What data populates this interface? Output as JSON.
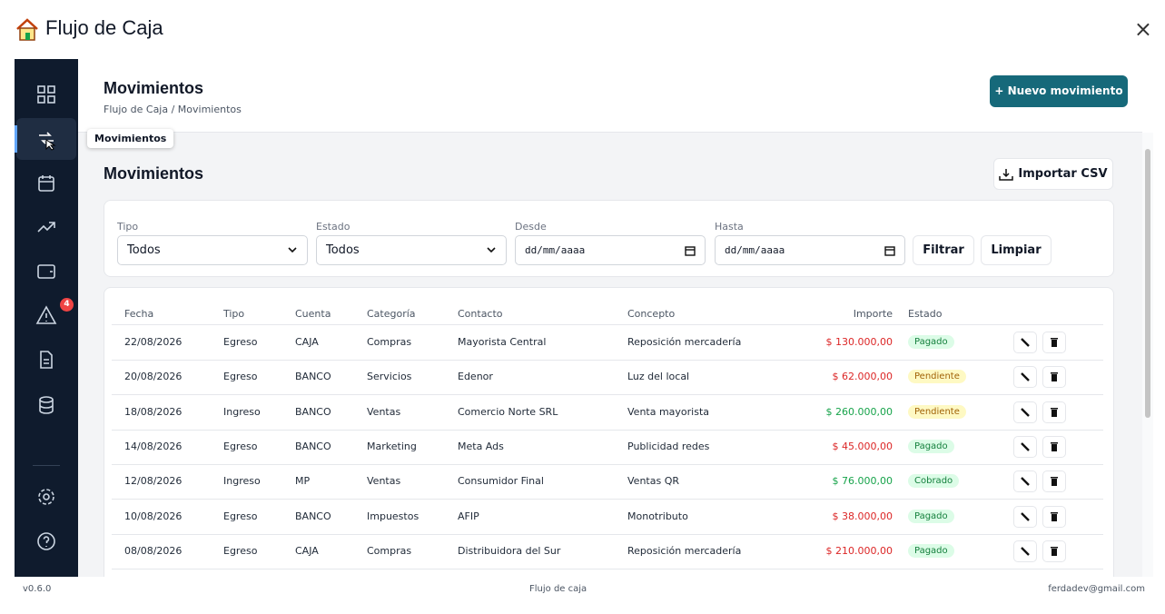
{
  "app": {
    "title": "Flujo de Caja",
    "close": "×"
  },
  "sidebar": {
    "tooltip": "Movimientos",
    "alert_badge": "4"
  },
  "header": {
    "title": "Movimientos",
    "breadcrumb": "Flujo de Caja / Movimientos",
    "new_button": "+ Nuevo movimiento"
  },
  "section": {
    "title": "Movimientos",
    "import_button": "Importar CSV"
  },
  "filters": {
    "fields": [
      {
        "label": "Tipo",
        "value": "Todos"
      },
      {
        "label": "Estado",
        "value": "Todos"
      },
      {
        "label": "Desde",
        "value": "dd/mm/aaaa"
      },
      {
        "label": "Hasta",
        "value": "dd/mm/aaaa"
      }
    ],
    "filter_button": "Filtrar",
    "clear_button": "Limpiar"
  },
  "table": {
    "columns": [
      "Fecha",
      "Tipo",
      "Cuenta",
      "Categoría",
      "Contacto",
      "Concepto",
      "Importe",
      "Estado"
    ],
    "rows": [
      {
        "cells": [
          "22/08/2026",
          "Egreso",
          "CAJA",
          "Compras",
          "Mayorista Central",
          "Reposición mercadería",
          "$ 130.000,00",
          "Pagado"
        ],
        "amount_color": "#dc2626",
        "status_color": "green"
      },
      {
        "cells": [
          "20/08/2026",
          "Egreso",
          "BANCO",
          "Servicios",
          "Edenor",
          "Luz del local",
          "$ 62.000,00",
          "Pendiente"
        ],
        "amount_color": "#dc2626",
        "status_color": "yellow"
      },
      {
        "cells": [
          "18/08/2026",
          "Ingreso",
          "BANCO",
          "Ventas",
          "Comercio Norte SRL",
          "Venta mayorista",
          "$ 260.000,00",
          "Pendiente"
        ],
        "amount_color": "#16a34a",
        "status_color": "yellow"
      },
      {
        "cells": [
          "14/08/2026",
          "Egreso",
          "BANCO",
          "Marketing",
          "Meta Ads",
          "Publicidad redes",
          "$ 45.000,00",
          "Pagado"
        ],
        "amount_color": "#dc2626",
        "status_color": "green"
      },
      {
        "cells": [
          "12/08/2026",
          "Ingreso",
          "MP",
          "Ventas",
          "Consumidor Final",
          "Ventas QR",
          "$ 76.000,00",
          "Cobrado"
        ],
        "amount_color": "#16a34a",
        "status_color": "green"
      },
      {
        "cells": [
          "10/08/2026",
          "Egreso",
          "BANCO",
          "Impuestos",
          "AFIP",
          "Monotributo",
          "$ 38.000,00",
          "Pagado"
        ],
        "amount_color": "#dc2626",
        "status_color": "green"
      },
      {
        "cells": [
          "08/08/2026",
          "Egreso",
          "CAJA",
          "Compras",
          "Distribuidora del Sur",
          "Reposición mercadería",
          "$ 210.000,00",
          "Pagado"
        ],
        "amount_color": "#dc2626",
        "status_color": "green"
      }
    ]
  },
  "footer": {
    "version": "v0.6.0",
    "center": "Flujo de caja",
    "email": "ferdadev@gmail.com"
  }
}
